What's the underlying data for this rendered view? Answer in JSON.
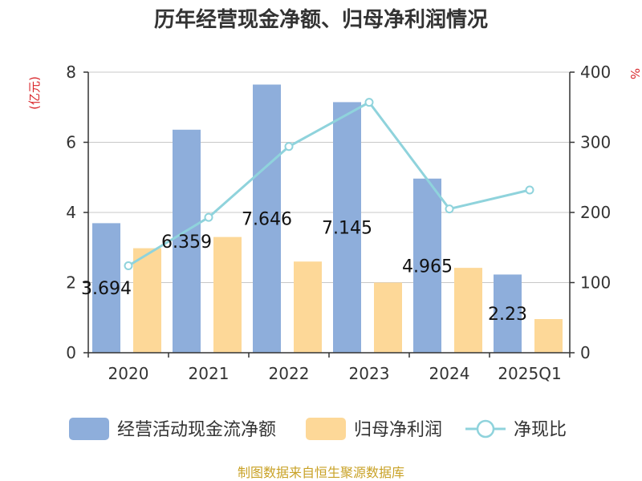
{
  "chart_data": {
    "type": "bar",
    "title": "历年经营现金净额、归母净利润情况",
    "categories": [
      "2020",
      "2021",
      "2022",
      "2023",
      "2024",
      "2025Q1"
    ],
    "series": [
      {
        "name": "经营活动现金流净额",
        "type": "bar",
        "axis": "left",
        "color": "#8eaedb",
        "values": [
          3.694,
          6.359,
          7.646,
          7.145,
          4.965,
          2.23
        ],
        "labels_shown": true
      },
      {
        "name": "归母净利润",
        "type": "bar",
        "axis": "left",
        "color": "#fdd898",
        "values": [
          2.98,
          3.3,
          2.6,
          2.0,
          2.42,
          0.96
        ],
        "labels_shown": false
      },
      {
        "name": "净现比",
        "type": "line",
        "axis": "right",
        "color": "#8fd3dc",
        "values": [
          124,
          193,
          294,
          357,
          205,
          232
        ],
        "labels_shown": false
      }
    ],
    "y_left": {
      "label": "(亿元)",
      "min": 0,
      "max": 8,
      "ticks": [
        0,
        2,
        4,
        6,
        8
      ]
    },
    "y_right": {
      "label": "%",
      "min": 0,
      "max": 400,
      "ticks": [
        0,
        100,
        200,
        300,
        400
      ]
    },
    "grid": true,
    "legend_position": "bottom",
    "source": "制图数据来自恒生聚源数据库"
  }
}
